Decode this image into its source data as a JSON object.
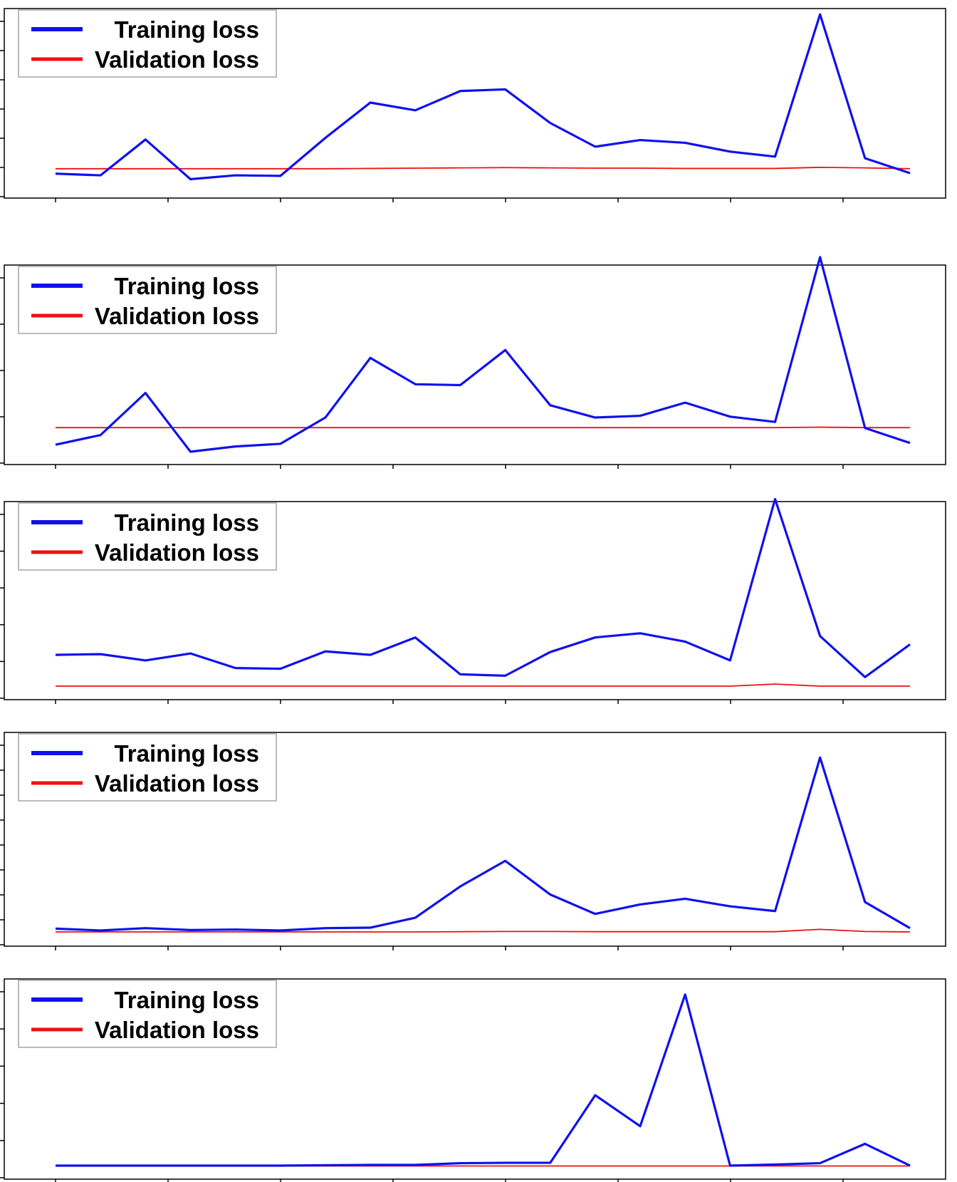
{
  "colors": {
    "training": "#1010ee",
    "validation": "#ee1111",
    "axes": "#000000",
    "legend_border": "#bbbbbb"
  },
  "chart_data": [
    {
      "type": "line",
      "x": [
        0,
        1,
        2,
        3,
        4,
        5,
        6,
        7,
        8,
        9,
        10,
        11,
        12,
        13,
        14,
        15,
        16,
        17,
        18,
        19
      ],
      "ylim": [
        0,
        6
      ],
      "legend_placement": "top-left",
      "grid": false,
      "series": [
        {
          "name": "Training loss",
          "values": [
            0.42,
            0.36,
            1.66,
            0.22,
            0.36,
            0.34,
            1.72,
            3.0,
            2.72,
            3.42,
            3.48,
            2.26,
            1.4,
            1.64,
            1.54,
            1.22,
            1.04,
            6.2,
            0.98,
            0.44
          ]
        },
        {
          "name": "Validation loss",
          "values": [
            0.6,
            0.6,
            0.6,
            0.6,
            0.6,
            0.6,
            0.6,
            0.61,
            0.62,
            0.63,
            0.64,
            0.63,
            0.62,
            0.62,
            0.61,
            0.61,
            0.61,
            0.65,
            0.63,
            0.6
          ]
        }
      ]
    },
    {
      "type": "line",
      "x": [
        0,
        1,
        2,
        3,
        4,
        5,
        6,
        7,
        8,
        9,
        10,
        11,
        12,
        13,
        14,
        15,
        16,
        17,
        18,
        19
      ],
      "ylim": [
        0,
        4
      ],
      "legend_placement": "top-left",
      "grid": false,
      "series": [
        {
          "name": "Training loss",
          "values": [
            0.16,
            0.38,
            1.34,
            0.0,
            0.12,
            0.18,
            0.78,
            2.14,
            1.54,
            1.52,
            2.32,
            1.06,
            0.78,
            0.82,
            1.12,
            0.8,
            0.68,
            4.44,
            0.54,
            0.2
          ]
        },
        {
          "name": "Validation loss",
          "values": [
            0.55,
            0.55,
            0.55,
            0.55,
            0.55,
            0.55,
            0.55,
            0.55,
            0.55,
            0.55,
            0.55,
            0.55,
            0.55,
            0.55,
            0.55,
            0.55,
            0.55,
            0.56,
            0.55,
            0.55
          ]
        }
      ]
    },
    {
      "type": "line",
      "x": [
        0,
        1,
        2,
        3,
        4,
        5,
        6,
        7,
        8,
        9,
        10,
        11,
        12,
        13,
        14,
        15,
        16,
        17,
        18,
        19
      ],
      "ylim": [
        0,
        5
      ],
      "legend_placement": "top-left",
      "grid": false,
      "series": [
        {
          "name": "Training loss",
          "values": [
            0.92,
            0.94,
            0.76,
            0.96,
            0.54,
            0.52,
            1.02,
            0.92,
            1.42,
            0.36,
            0.32,
            1.0,
            1.42,
            1.54,
            1.3,
            0.76,
            5.4,
            1.46,
            0.28,
            1.22
          ]
        },
        {
          "name": "Validation loss",
          "values": [
            0.02,
            0.02,
            0.02,
            0.02,
            0.02,
            0.02,
            0.02,
            0.02,
            0.02,
            0.02,
            0.02,
            0.02,
            0.02,
            0.02,
            0.02,
            0.02,
            0.08,
            0.02,
            0.02,
            0.02
          ]
        }
      ]
    },
    {
      "type": "line",
      "x": [
        0,
        1,
        2,
        3,
        4,
        5,
        6,
        7,
        8,
        9,
        10,
        11,
        12,
        13,
        14,
        15,
        16,
        17,
        18,
        19
      ],
      "ylim": [
        0,
        8
      ],
      "legend_placement": "top-left",
      "grid": false,
      "series": [
        {
          "name": "Training loss",
          "values": [
            0.2,
            0.12,
            0.22,
            0.14,
            0.16,
            0.12,
            0.22,
            0.24,
            0.66,
            1.98,
            3.06,
            1.64,
            0.82,
            1.22,
            1.46,
            1.14,
            0.94,
            7.42,
            1.32,
            0.22
          ]
        },
        {
          "name": "Validation loss",
          "values": [
            0.06,
            0.06,
            0.06,
            0.06,
            0.06,
            0.06,
            0.06,
            0.06,
            0.06,
            0.07,
            0.08,
            0.08,
            0.07,
            0.07,
            0.07,
            0.07,
            0.07,
            0.17,
            0.08,
            0.06
          ]
        }
      ]
    },
    {
      "type": "line",
      "x": [
        0,
        1,
        2,
        3,
        4,
        5,
        6,
        7,
        8,
        9,
        10,
        11,
        12,
        13,
        14,
        15,
        16,
        17,
        18,
        19
      ],
      "ylim": [
        0,
        5
      ],
      "legend_placement": "top-left",
      "grid": false,
      "series": [
        {
          "name": "Training loss",
          "values": [
            0.02,
            0.02,
            0.02,
            0.02,
            0.02,
            0.02,
            0.03,
            0.04,
            0.04,
            0.09,
            0.1,
            0.1,
            2.02,
            1.14,
            4.88,
            0.02,
            0.05,
            0.09,
            0.64,
            0.02
          ]
        },
        {
          "name": "Validation loss",
          "values": [
            0.01,
            0.01,
            0.01,
            0.01,
            0.01,
            0.01,
            0.01,
            0.01,
            0.01,
            0.01,
            0.01,
            0.01,
            0.01,
            0.01,
            0.01,
            0.01,
            0.01,
            0.01,
            0.01,
            0.01
          ]
        }
      ]
    }
  ]
}
